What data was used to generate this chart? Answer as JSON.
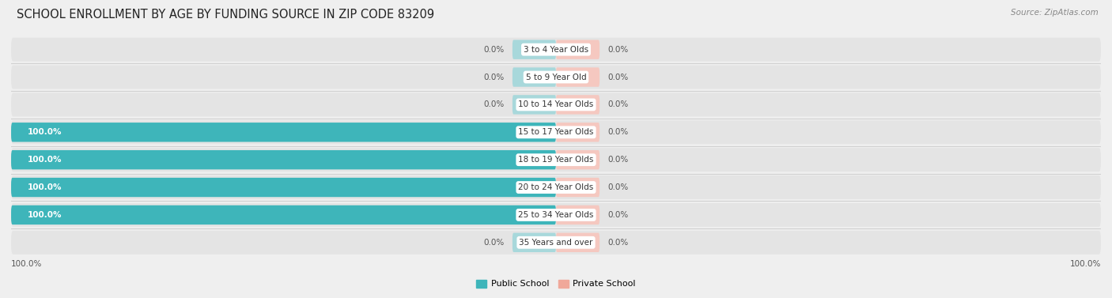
{
  "title": "SCHOOL ENROLLMENT BY AGE BY FUNDING SOURCE IN ZIP CODE 83209",
  "source": "Source: ZipAtlas.com",
  "categories": [
    "3 to 4 Year Olds",
    "5 to 9 Year Old",
    "10 to 14 Year Olds",
    "15 to 17 Year Olds",
    "18 to 19 Year Olds",
    "20 to 24 Year Olds",
    "25 to 34 Year Olds",
    "35 Years and over"
  ],
  "public_values": [
    0.0,
    0.0,
    0.0,
    100.0,
    100.0,
    100.0,
    100.0,
    0.0
  ],
  "private_values": [
    0.0,
    0.0,
    0.0,
    0.0,
    0.0,
    0.0,
    0.0,
    0.0
  ],
  "public_color": "#3EB5BA",
  "private_color": "#F0A89A",
  "public_color_zero": "#A8D8DB",
  "private_color_zero": "#F5C8C0",
  "background_color": "#efefef",
  "row_bg_color": "#e4e4e4",
  "separator_color": "#d0d0d0",
  "xlim": 100,
  "zero_stub": 8,
  "legend_public": "Public School",
  "legend_private": "Private School",
  "title_fontsize": 10.5,
  "source_fontsize": 7.5,
  "label_fontsize": 7.5,
  "value_fontsize": 7.5,
  "axis_label_left": "100.0%",
  "axis_label_right": "100.0%"
}
